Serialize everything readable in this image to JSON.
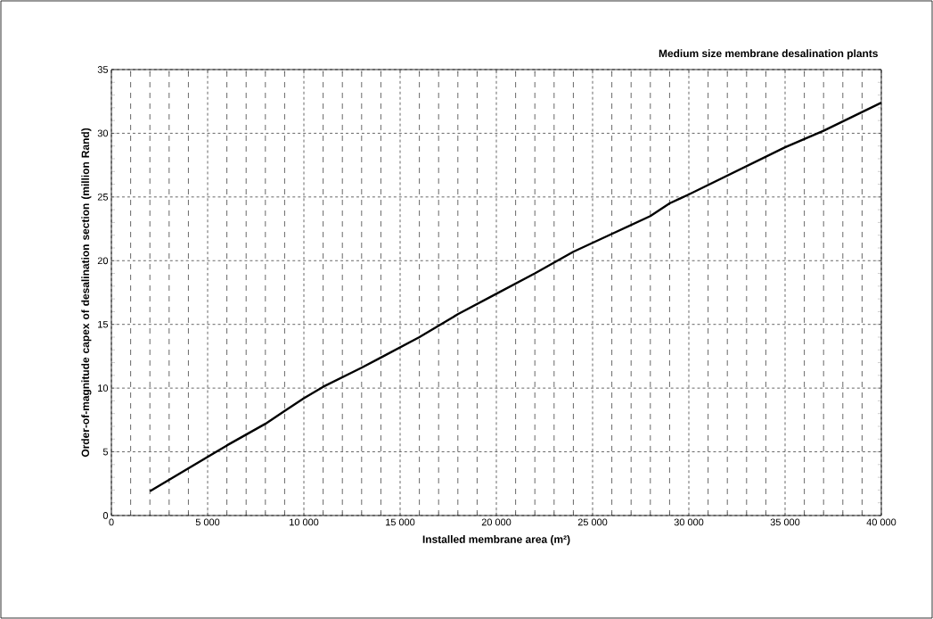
{
  "chart_data": {
    "type": "line",
    "title": "Medium size membrane desalination plants",
    "xlabel": "Installed membrane area (m²)",
    "ylabel": "Order-of-magnitude capex of desalination section (million Rand)",
    "x": [
      2000,
      4000,
      6000,
      8000,
      9000,
      10000,
      11000,
      13000,
      14000,
      16000,
      18000,
      20000,
      22000,
      24000,
      26000,
      28000,
      29000,
      30000,
      35000,
      37000,
      40000
    ],
    "series": [
      {
        "color": "#000000",
        "values": [
          1.9,
          3.7,
          5.5,
          7.2,
          8.2,
          9.2,
          10.1,
          11.6,
          12.4,
          14.0,
          15.8,
          17.4,
          19.0,
          20.7,
          22.1,
          23.5,
          24.5,
          25.2,
          28.9,
          30.2,
          32.4
        ]
      }
    ],
    "xlim": [
      0,
      40000
    ],
    "ylim": [
      0,
      35
    ],
    "xticks": [
      0,
      {
        "value": 5000,
        "label": "5 000"
      },
      {
        "value": 10000,
        "label": "10 000"
      },
      {
        "value": 15000,
        "label": "15 000"
      },
      {
        "value": 20000,
        "label": "20 000"
      },
      {
        "value": 25000,
        "label": "25 000"
      },
      {
        "value": 30000,
        "label": "30 000"
      },
      {
        "value": 35000,
        "label": "35 000"
      },
      {
        "value": 40000,
        "label": "40 000"
      }
    ],
    "yticks": [
      0,
      5,
      10,
      15,
      20,
      25,
      30,
      35
    ],
    "grid": true,
    "marker": "none",
    "line_style": "solid"
  }
}
